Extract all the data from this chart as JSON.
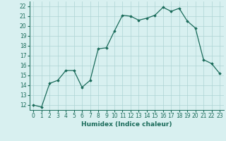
{
  "x": [
    0,
    1,
    2,
    3,
    4,
    5,
    6,
    7,
    8,
    9,
    10,
    11,
    12,
    13,
    14,
    15,
    16,
    17,
    18,
    19,
    20,
    21,
    22,
    23
  ],
  "y": [
    12.0,
    11.8,
    14.2,
    14.5,
    15.5,
    15.5,
    13.8,
    14.5,
    17.7,
    17.8,
    19.5,
    21.1,
    21.0,
    20.6,
    20.8,
    21.1,
    21.9,
    21.5,
    21.8,
    20.5,
    19.8,
    16.6,
    16.2,
    15.2
  ],
  "line_color": "#1a6b5a",
  "marker": "D",
  "marker_size": 1.8,
  "bg_color": "#d8f0f0",
  "grid_color": "#aed4d4",
  "xlabel": "Humidex (Indice chaleur)",
  "xlim": [
    -0.5,
    23.5
  ],
  "ylim": [
    11.5,
    22.5
  ],
  "yticks": [
    12,
    13,
    14,
    15,
    16,
    17,
    18,
    19,
    20,
    21,
    22
  ],
  "xticks": [
    0,
    1,
    2,
    3,
    4,
    5,
    6,
    7,
    8,
    9,
    10,
    11,
    12,
    13,
    14,
    15,
    16,
    17,
    18,
    19,
    20,
    21,
    22,
    23
  ],
  "label_fontsize": 6.5,
  "tick_fontsize": 5.5
}
